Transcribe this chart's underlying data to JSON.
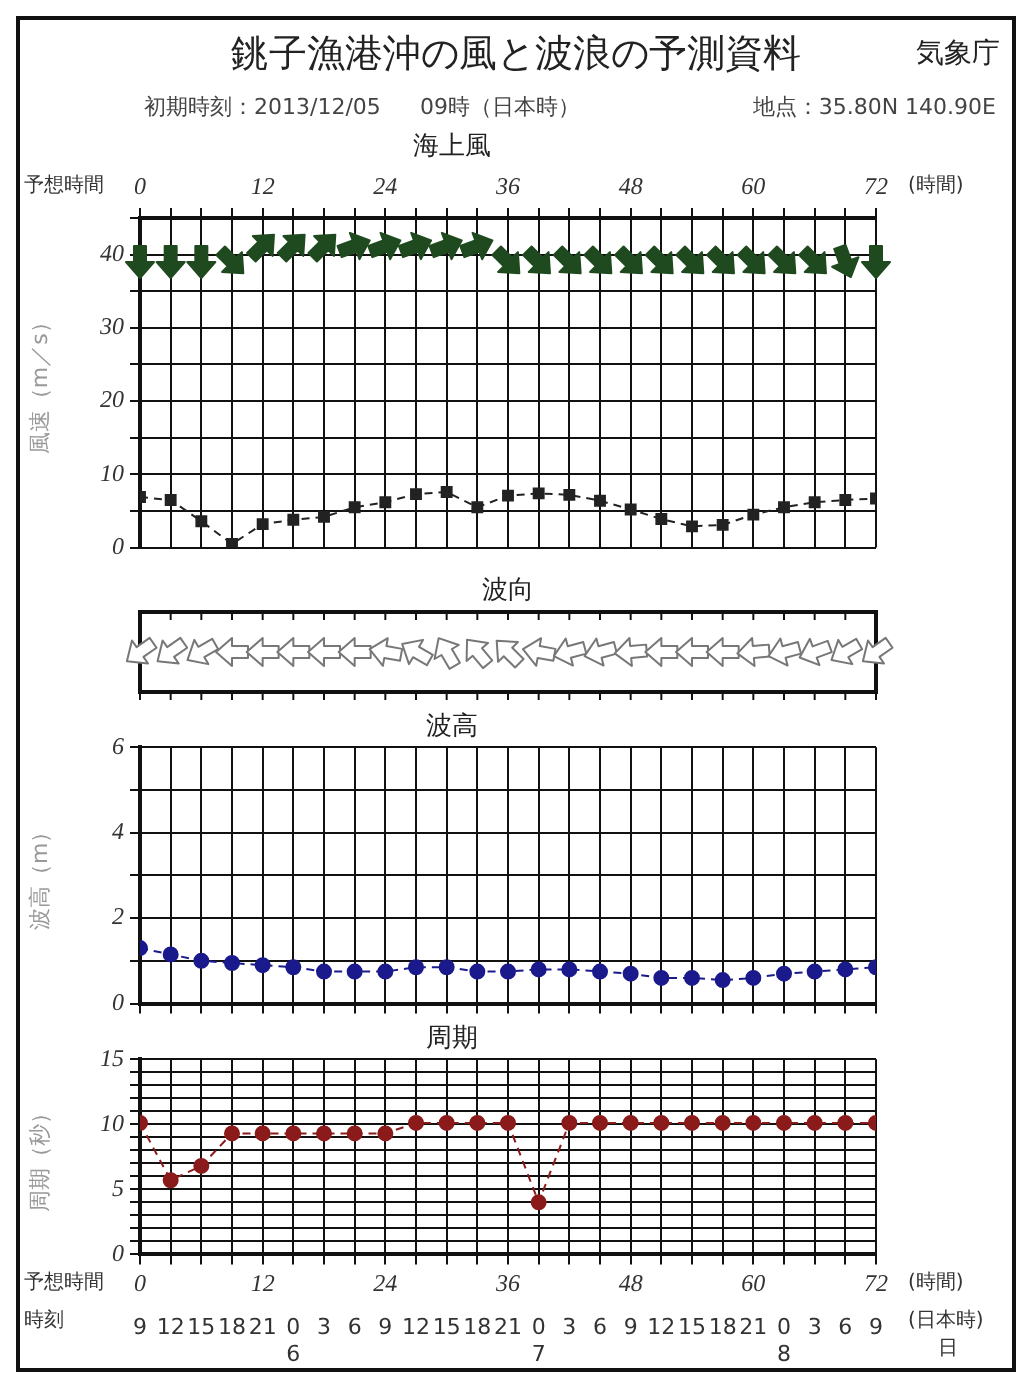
{
  "chart_data": [
    {
      "type": "line",
      "title": "海上風",
      "ylabel": "風速（m／s）",
      "annotations": [
        "銚子漁港沖の風と波浪の予測資料",
        "気象庁",
        "初期時刻：2013/12/05",
        "09時（日本時）",
        "地点：35.80N 140.90E",
        "予想時間",
        "(時間)"
      ],
      "x": [
        0,
        3,
        6,
        9,
        12,
        15,
        18,
        21,
        24,
        27,
        30,
        33,
        36,
        39,
        42,
        45,
        48,
        51,
        54,
        57,
        60,
        63,
        66,
        69,
        72
      ],
      "series": [
        {
          "color": "#222222",
          "values": [
            6.9,
            6.5,
            3.6,
            0.5,
            3.2,
            3.8,
            4.2,
            5.5,
            6.2,
            7.3,
            7.6,
            5.5,
            7.1,
            7.4,
            7.2,
            6.4,
            5.2,
            3.9,
            2.9,
            3.1,
            4.5,
            5.5,
            6.2,
            6.5,
            6.7
          ]
        }
      ],
      "xlim": [
        0,
        72
      ],
      "xticks": [
        0,
        {
          "value": 3,
          "label": null
        },
        {
          "value": 6,
          "label": null
        },
        {
          "value": 9,
          "label": null
        },
        12,
        {
          "value": 15,
          "label": null
        },
        {
          "value": 18,
          "label": null
        },
        {
          "value": 21,
          "label": null
        },
        24,
        {
          "value": 27,
          "label": null
        },
        {
          "value": 30,
          "label": null
        },
        {
          "value": 33,
          "label": null
        },
        36,
        {
          "value": 39,
          "label": null
        },
        {
          "value": 42,
          "label": null
        },
        {
          "value": 45,
          "label": null
        },
        48,
        {
          "value": 51,
          "label": null
        },
        {
          "value": 54,
          "label": null
        },
        {
          "value": 57,
          "label": null
        },
        60,
        {
          "value": 63,
          "label": null
        },
        {
          "value": 66,
          "label": null
        },
        {
          "value": 69,
          "label": null
        },
        72
      ],
      "ylim": [
        0,
        45
      ],
      "yticks": [
        0,
        {
          "value": 5,
          "label": null
        },
        10,
        {
          "value": 15,
          "label": null
        },
        20,
        {
          "value": 25,
          "label": null
        },
        30,
        {
          "value": 35,
          "label": null
        },
        40,
        {
          "value": 45,
          "label": null
        }
      ],
      "grid": true,
      "marker": "square",
      "line_style": "dashed"
    },
    {
      "type": "other",
      "title": "波向"
    },
    {
      "type": "line",
      "title": "波高",
      "ylabel": "波高（m）",
      "x": [
        0,
        3,
        6,
        9,
        12,
        15,
        18,
        21,
        24,
        27,
        30,
        33,
        36,
        39,
        42,
        45,
        48,
        51,
        54,
        57,
        60,
        63,
        66,
        69,
        72
      ],
      "series": [
        {
          "color": "#1a1a8c",
          "values": [
            1.3,
            1.15,
            1.0,
            0.95,
            0.9,
            0.85,
            0.75,
            0.75,
            0.75,
            0.85,
            0.85,
            0.75,
            0.75,
            0.8,
            0.8,
            0.75,
            0.7,
            0.6,
            0.6,
            0.55,
            0.6,
            0.7,
            0.75,
            0.8,
            0.85
          ]
        }
      ],
      "xlim": [
        0,
        72
      ],
      "xticks": [
        0,
        3,
        6,
        9,
        12,
        15,
        18,
        21,
        24,
        27,
        30,
        33,
        36,
        39,
        42,
        45,
        48,
        51,
        54,
        57,
        60,
        63,
        66,
        69,
        72
      ],
      "ylim": [
        0,
        6
      ],
      "yticks": [
        0,
        {
          "value": 1,
          "label": null
        },
        2,
        {
          "value": 3,
          "label": null
        },
        4,
        {
          "value": 5,
          "label": null
        },
        6
      ],
      "grid": true,
      "marker": "circle",
      "line_style": "dashed",
      "tick_labels": "y"
    },
    {
      "type": "line",
      "title": "周期",
      "ylabel": "周期（秒）",
      "annotations": [
        "予想時間",
        "時刻",
        "(時間)",
        "(日本時)",
        "日"
      ],
      "x": [
        0,
        3,
        6,
        9,
        12,
        15,
        18,
        21,
        24,
        27,
        30,
        33,
        36,
        39,
        42,
        45,
        48,
        51,
        54,
        57,
        60,
        63,
        66,
        69,
        72
      ],
      "series": [
        {
          "color": "#8b1a1a",
          "values": [
            10.1,
            5.7,
            6.8,
            9.3,
            9.3,
            9.3,
            9.3,
            9.3,
            9.3,
            10.1,
            10.1,
            10.1,
            10.1,
            4.0,
            10.1,
            10.1,
            10.1,
            10.1,
            10.1,
            10.1,
            10.1,
            10.1,
            10.1,
            10.1,
            10.1
          ]
        }
      ],
      "xlim": [
        0,
        72
      ],
      "xticks": [
        0,
        {
          "value": 3,
          "label": null
        },
        {
          "value": 6,
          "label": null
        },
        {
          "value": 9,
          "label": null
        },
        12,
        {
          "value": 15,
          "label": null
        },
        {
          "value": 18,
          "label": null
        },
        {
          "value": 21,
          "label": null
        },
        24,
        {
          "value": 27,
          "label": null
        },
        {
          "value": 30,
          "label": null
        },
        {
          "value": 33,
          "label": null
        },
        36,
        {
          "value": 39,
          "label": null
        },
        {
          "value": 42,
          "label": null
        },
        {
          "value": 45,
          "label": null
        },
        48,
        {
          "value": 51,
          "label": null
        },
        {
          "value": 54,
          "label": null
        },
        {
          "value": 57,
          "label": null
        },
        60,
        {
          "value": 63,
          "label": null
        },
        {
          "value": 66,
          "label": null
        },
        {
          "value": 69,
          "label": null
        },
        72
      ],
      "x2lim": [
        "2013-12-05T09:00",
        "2013-12-08T09:00"
      ],
      "x2ticks": [
        {
          "value": "2013-12-05T09:00",
          "label": "9"
        },
        {
          "value": "2013-12-05T12:00",
          "label": "12"
        },
        {
          "value": "2013-12-05T15:00",
          "label": "15"
        },
        {
          "value": "2013-12-05T18:00",
          "label": "18"
        },
        {
          "value": "2013-12-05T21:00",
          "label": "21"
        },
        {
          "value": "2013-12-06T00:00",
          "label": "0\n6"
        },
        {
          "value": "2013-12-06T03:00",
          "label": "3"
        },
        {
          "value": "2013-12-06T06:00",
          "label": "6"
        },
        {
          "value": "2013-12-06T09:00",
          "label": "9"
        },
        {
          "value": "2013-12-06T12:00",
          "label": "12"
        },
        {
          "value": "2013-12-06T15:00",
          "label": "15"
        },
        {
          "value": "2013-12-06T18:00",
          "label": "18"
        },
        {
          "value": "2013-12-06T21:00",
          "label": "21"
        },
        {
          "value": "2013-12-07T00:00",
          "label": "0\n7"
        },
        {
          "value": "2013-12-07T03:00",
          "label": "3"
        },
        {
          "value": "2013-12-07T06:00",
          "label": "6"
        },
        {
          "value": "2013-12-07T09:00",
          "label": "9"
        },
        {
          "value": "2013-12-07T12:00",
          "label": "12"
        },
        {
          "value": "2013-12-07T15:00",
          "label": "15"
        },
        {
          "value": "2013-12-07T18:00",
          "label": "18"
        },
        {
          "value": "2013-12-07T21:00",
          "label": "21"
        },
        {
          "value": "2013-12-08T00:00",
          "label": "0\n8"
        },
        {
          "value": "2013-12-08T03:00",
          "label": "3"
        },
        {
          "value": "2013-12-08T06:00",
          "label": "6"
        },
        {
          "value": "2013-12-08T09:00",
          "label": "9"
        }
      ],
      "ylim": [
        0,
        15
      ],
      "yticks": [
        0,
        {
          "value": 1,
          "label": null
        },
        {
          "value": 2,
          "label": null
        },
        {
          "value": 3,
          "label": null
        },
        {
          "value": 4,
          "label": null
        },
        5,
        {
          "value": 6,
          "label": null
        },
        {
          "value": 7,
          "label": null
        },
        {
          "value": 8,
          "label": null
        },
        {
          "value": 9,
          "label": null
        },
        10,
        {
          "value": 11,
          "label": null
        },
        {
          "value": 12,
          "label": null
        },
        {
          "value": 13,
          "label": null
        },
        {
          "value": 14,
          "label": null
        },
        15
      ],
      "grid": true,
      "marker": "circle",
      "line_style": "dashed"
    }
  ]
}
